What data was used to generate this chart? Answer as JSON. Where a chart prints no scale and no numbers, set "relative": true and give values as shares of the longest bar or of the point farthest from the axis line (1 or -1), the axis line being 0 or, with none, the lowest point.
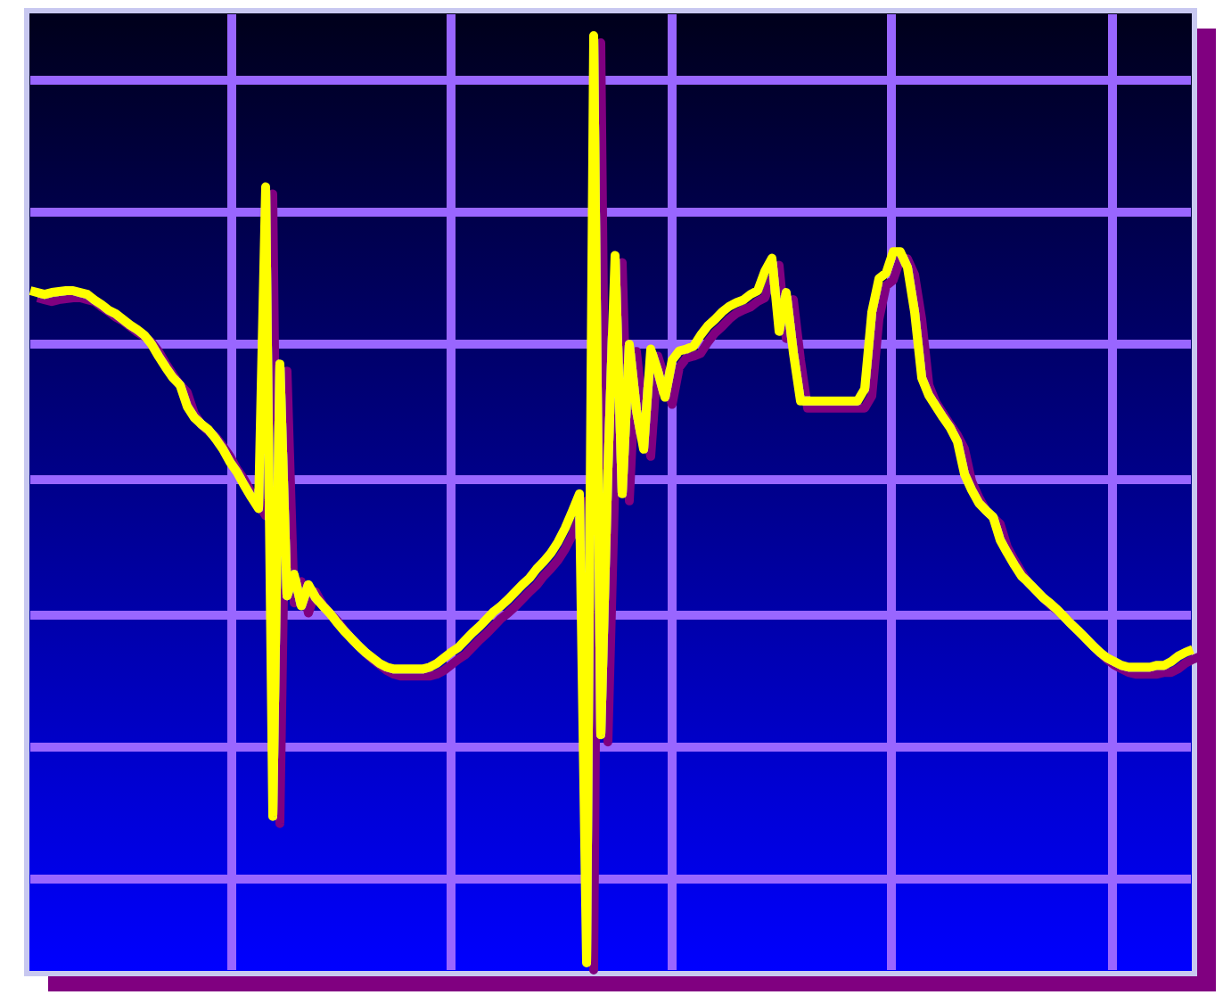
{
  "chart_data": {
    "type": "line",
    "relative": true,
    "grid": true,
    "line_style": "solid",
    "categories": [
      null,
      null,
      null,
      null,
      null,
      null,
      null,
      null,
      null,
      null,
      null,
      null,
      null,
      null,
      null,
      null,
      null,
      null,
      null,
      null,
      null,
      null,
      null,
      null,
      null,
      null,
      null,
      null,
      null,
      null,
      null,
      null,
      null,
      null,
      null,
      null,
      null,
      null,
      null,
      null,
      null,
      null,
      null,
      null,
      null,
      null,
      null,
      null,
      null,
      null,
      null,
      null,
      null,
      null,
      null,
      null,
      null,
      null,
      null,
      null,
      null,
      null,
      null,
      null,
      null,
      null,
      null,
      null,
      null,
      null,
      null,
      null,
      null,
      null,
      null,
      null,
      null,
      null,
      null,
      null,
      null,
      null,
      null,
      null,
      null,
      null,
      null,
      null,
      null,
      null,
      null,
      null,
      null,
      null,
      null,
      null,
      null,
      null,
      null,
      null,
      null,
      null,
      null,
      null,
      null,
      null,
      null,
      null,
      null,
      null,
      null,
      null,
      null,
      null,
      null,
      null,
      null,
      null,
      null,
      null,
      null,
      null,
      null,
      null,
      null,
      null,
      null,
      null,
      null,
      null,
      null,
      null,
      null,
      null,
      null,
      null,
      null,
      null,
      null,
      null,
      null,
      null,
      null,
      null,
      null,
      null,
      null,
      null,
      null,
      null,
      null,
      null,
      null,
      null,
      null,
      null,
      null,
      null,
      null,
      null,
      null,
      null,
      null,
      null
    ],
    "series": [
      {
        "color": "#ffff00",
        "values": [
          0.725,
          0.723,
          0.721,
          0.723,
          0.724,
          0.725,
          0.725,
          0.723,
          0.721,
          0.715,
          0.71,
          0.704,
          0.7,
          0.694,
          0.688,
          0.683,
          0.677,
          0.667,
          0.654,
          0.642,
          0.631,
          0.623,
          0.6,
          0.588,
          0.581,
          0.575,
          0.565,
          0.554,
          0.54,
          0.529,
          0.515,
          0.502,
          0.49,
          0.837,
          0.158,
          0.646,
          0.396,
          0.419,
          0.385,
          0.408,
          0.394,
          0.385,
          0.377,
          0.367,
          0.358,
          0.35,
          0.342,
          0.335,
          0.329,
          0.323,
          0.319,
          0.317,
          0.317,
          0.317,
          0.317,
          0.317,
          0.319,
          0.323,
          0.329,
          0.335,
          0.34,
          0.348,
          0.356,
          0.363,
          0.371,
          0.379,
          0.385,
          0.392,
          0.4,
          0.408,
          0.415,
          0.425,
          0.433,
          0.442,
          0.454,
          0.469,
          0.487,
          0.506,
          0,
          1,
          0.246,
          0.533,
          0.763,
          0.506,
          0.667,
          0.596,
          0.554,
          0.662,
          0.638,
          0.61,
          0.65,
          0.66,
          0.662,
          0.665,
          0.677,
          0.687,
          0.694,
          0.702,
          0.708,
          0.712,
          0.715,
          0.721,
          0.725,
          0.746,
          0.76,
          0.681,
          0.723,
          0.658,
          0.606,
          0.606,
          0.606,
          0.606,
          0.606,
          0.606,
          0.606,
          0.606,
          0.606,
          0.619,
          0.702,
          0.738,
          0.744,
          0.767,
          0.767,
          0.75,
          0.702,
          0.631,
          0.612,
          0.6,
          0.588,
          0.577,
          0.562,
          0.527,
          0.51,
          0.496,
          0.488,
          0.481,
          0.456,
          0.442,
          0.429,
          0.417,
          0.41,
          0.402,
          0.394,
          0.388,
          0.381,
          0.373,
          0.365,
          0.358,
          0.35,
          0.342,
          0.335,
          0.329,
          0.325,
          0.321,
          0.319,
          0.319,
          0.319,
          0.319,
          0.321,
          0.321,
          0.325,
          0.331,
          0.335,
          0.338
        ]
      }
    ]
  }
}
